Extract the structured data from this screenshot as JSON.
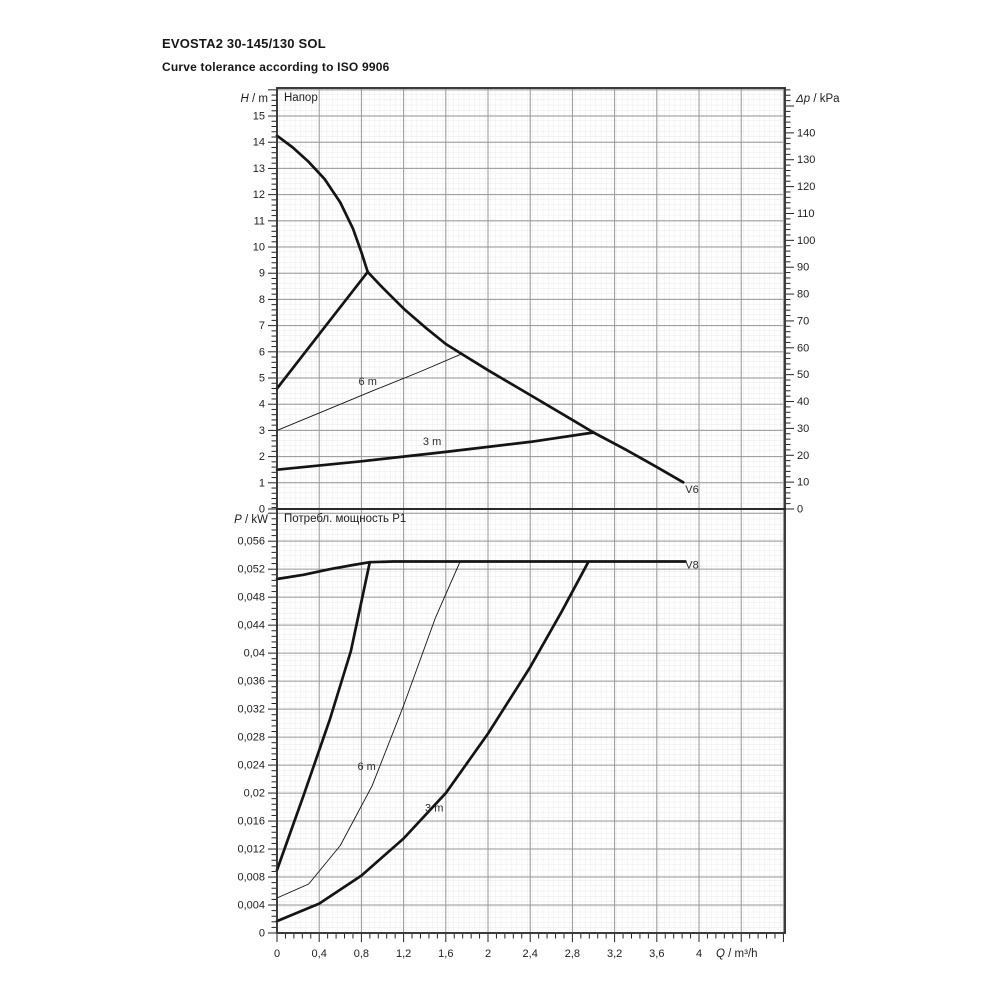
{
  "doc": {
    "title": "EVOSTA2 30-145/130 SOL",
    "subtitle": "Curve tolerance according to ISO 9906"
  },
  "colors": {
    "background": "#ffffff",
    "curve": "#141414",
    "grid_minor": "#e1e1e1",
    "grid_major": "#969696",
    "border": "#262626",
    "tick": "#222222",
    "text": "#1d1d1d"
  },
  "chart_data": [
    {
      "type": "line",
      "position": "top",
      "title": "Напор",
      "x_axis": {
        "min": 0,
        "max": 4.815,
        "major_step": 0.4,
        "minor_step": 0.08,
        "show_tick_labels": false
      },
      "y_left": {
        "label": "H / m",
        "min": 0,
        "max": 16.07,
        "major_step": 1,
        "minor_step": 0.2,
        "tick_values": [
          0,
          1,
          2,
          3,
          4,
          5,
          6,
          7,
          8,
          9,
          10,
          11,
          12,
          13,
          14,
          15
        ],
        "tick_labels": [
          "0",
          "1",
          "2",
          "3",
          "4",
          "5",
          "6",
          "7",
          "8",
          "9",
          "10",
          "11",
          "12",
          "13",
          "14",
          "15"
        ]
      },
      "y_right": {
        "label": "Δp / kPa",
        "min": 0,
        "max": 156.7,
        "major_step": 10,
        "minor_step": 2,
        "tick_values": [
          0,
          10,
          20,
          30,
          40,
          50,
          60,
          70,
          80,
          90,
          100,
          110,
          120,
          130,
          140
        ],
        "tick_labels": [
          "0",
          "10",
          "20",
          "30",
          "40",
          "50",
          "60",
          "70",
          "80",
          "90",
          "100",
          "110",
          "120",
          "130",
          "140"
        ]
      },
      "series": [
        {
          "name": "max-speed-head-curve",
          "weight": "thick",
          "points": [
            [
              0,
              14.25
            ],
            [
              0.15,
              13.8
            ],
            [
              0.3,
              13.25
            ],
            [
              0.45,
              12.6
            ],
            [
              0.6,
              11.7
            ],
            [
              0.72,
              10.7
            ],
            [
              0.8,
              9.8
            ],
            [
              0.86,
              9.05
            ],
            [
              1.0,
              8.45
            ],
            [
              1.2,
              7.65
            ],
            [
              1.4,
              6.95
            ],
            [
              1.6,
              6.3
            ],
            [
              1.75,
              5.92
            ],
            [
              2.0,
              5.3
            ],
            [
              2.4,
              4.35
            ],
            [
              2.8,
              3.4
            ],
            [
              3.0,
              2.92
            ],
            [
              3.3,
              2.28
            ],
            [
              3.6,
              1.6
            ],
            [
              3.85,
              1.02
            ]
          ]
        },
        {
          "name": "setpoint-rise-curve",
          "weight": "thick",
          "points": [
            [
              0,
              4.6
            ],
            [
              0.43,
              6.83
            ],
            [
              0.86,
              9.05
            ]
          ]
        },
        {
          "name": "head-curve-6m",
          "weight": "thin",
          "points": [
            [
              0,
              3.0
            ],
            [
              0.45,
              3.75
            ],
            [
              0.9,
              4.5
            ],
            [
              1.35,
              5.23
            ],
            [
              1.75,
              5.92
            ]
          ]
        },
        {
          "name": "head-curve-3m",
          "weight": "thick",
          "points": [
            [
              0,
              1.5
            ],
            [
              0.8,
              1.82
            ],
            [
              1.6,
              2.18
            ],
            [
              2.4,
              2.56
            ],
            [
              3.0,
              2.92
            ]
          ]
        }
      ],
      "annotations": [
        {
          "text": "6 m",
          "x": 0.86,
          "y": 4.73,
          "anchor": "middle"
        },
        {
          "text": "3 m",
          "x": 1.47,
          "y": 2.45,
          "anchor": "middle"
        },
        {
          "text": "V6",
          "x": 3.87,
          "y": 0.62,
          "anchor": "start"
        }
      ]
    },
    {
      "type": "line",
      "position": "bottom",
      "title": "Потребл. мощность P1",
      "x_axis": {
        "label": "Q / m³/h",
        "min": 0,
        "max": 4.815,
        "major_step": 0.4,
        "minor_step": 0.08,
        "show_tick_labels": true,
        "tick_values": [
          0,
          0.4,
          0.8,
          1.2,
          1.6,
          2,
          2.4,
          2.8,
          3.2,
          3.6,
          4
        ],
        "tick_labels": [
          "0",
          "0,4",
          "0,8",
          "1,2",
          "1,6",
          "2",
          "2,4",
          "2,8",
          "3,2",
          "3,6",
          "4"
        ]
      },
      "y_left": {
        "label": "P / kW",
        "min": 0,
        "max": 0.0606,
        "major_step": 0.004,
        "minor_step": 0.0008,
        "tick_values": [
          0,
          0.004,
          0.008,
          0.012,
          0.016,
          0.02,
          0.024,
          0.028,
          0.032,
          0.036,
          0.04,
          0.044,
          0.048,
          0.052,
          0.056
        ],
        "tick_labels": [
          "0",
          "0,004",
          "0,008",
          "0,012",
          "0,016",
          "0,02",
          "0,024",
          "0,028",
          "0,032",
          "0,036",
          "0,04",
          "0,044",
          "0,048",
          "0,052",
          "0,056"
        ]
      },
      "series": [
        {
          "name": "max-speed-power-curve",
          "weight": "thick",
          "points": [
            [
              0,
              0.0506
            ],
            [
              0.25,
              0.0512
            ],
            [
              0.5,
              0.052
            ],
            [
              0.72,
              0.0526
            ],
            [
              0.88,
              0.053
            ],
            [
              1.1,
              0.0531
            ],
            [
              1.8,
              0.0531
            ],
            [
              2.6,
              0.0531
            ],
            [
              3.3,
              0.0531
            ],
            [
              3.87,
              0.0531
            ]
          ]
        },
        {
          "name": "setpoint-rise-power-curve",
          "weight": "thick",
          "points": [
            [
              0,
              0.009
            ],
            [
              0.25,
              0.0196
            ],
            [
              0.5,
              0.0305
            ],
            [
              0.7,
              0.0403
            ],
            [
              0.88,
              0.053
            ]
          ]
        },
        {
          "name": "power-curve-6m",
          "weight": "thin",
          "points": [
            [
              0,
              0.005
            ],
            [
              0.3,
              0.007
            ],
            [
              0.6,
              0.0125
            ],
            [
              0.9,
              0.021
            ],
            [
              1.2,
              0.0325
            ],
            [
              1.5,
              0.045
            ],
            [
              1.73,
              0.0529
            ]
          ]
        },
        {
          "name": "power-curve-3m",
          "weight": "thick",
          "points": [
            [
              0,
              0.0017
            ],
            [
              0.4,
              0.0042
            ],
            [
              0.8,
              0.0082
            ],
            [
              1.2,
              0.0135
            ],
            [
              1.6,
              0.02
            ],
            [
              2.0,
              0.0285
            ],
            [
              2.4,
              0.038
            ],
            [
              2.7,
              0.046
            ],
            [
              2.95,
              0.053
            ]
          ]
        }
      ],
      "annotations": [
        {
          "text": "6 m",
          "x": 0.85,
          "y": 0.0233,
          "anchor": "middle"
        },
        {
          "text": "3 m",
          "x": 1.49,
          "y": 0.0174,
          "anchor": "middle"
        },
        {
          "text": "V8",
          "x": 3.87,
          "y": 0.0521,
          "anchor": "start"
        }
      ]
    }
  ]
}
